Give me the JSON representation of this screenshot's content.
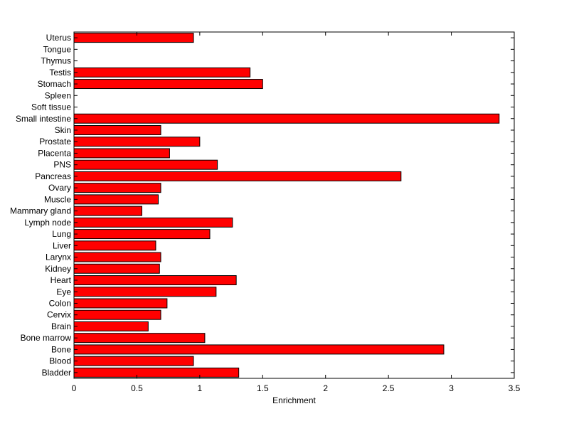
{
  "chart_data": {
    "type": "bar",
    "orientation": "horizontal",
    "title": "",
    "xlabel": "Enrichment",
    "ylabel": "",
    "xlim": [
      0,
      3.5
    ],
    "xticks": [
      "0",
      "0.5",
      "1",
      "1.5",
      "2",
      "2.5",
      "3",
      "3.5"
    ],
    "grid": false,
    "bar_color": "#ff0000",
    "edge_color": "#000000",
    "categories": [
      "Bladder",
      "Blood",
      "Bone",
      "Bone marrow",
      "Brain",
      "Cervix",
      "Colon",
      "Eye",
      "Heart",
      "Kidney",
      "Larynx",
      "Liver",
      "Lung",
      "Lymph node",
      "Mammary gland",
      "Muscle",
      "Ovary",
      "Pancreas",
      "PNS",
      "Placenta",
      "Prostate",
      "Skin",
      "Small intestine",
      "Soft tissue",
      "Spleen",
      "Stomach",
      "Testis",
      "Thymus",
      "Tongue",
      "Uterus"
    ],
    "values": [
      1.31,
      0.95,
      2.94,
      1.04,
      0.59,
      0.69,
      0.74,
      1.13,
      1.29,
      0.68,
      0.69,
      0.65,
      1.08,
      1.26,
      0.54,
      0.67,
      0.69,
      2.6,
      1.14,
      0.76,
      1.0,
      0.69,
      3.38,
      0,
      0,
      1.5,
      1.4,
      0,
      0,
      0.95
    ]
  }
}
